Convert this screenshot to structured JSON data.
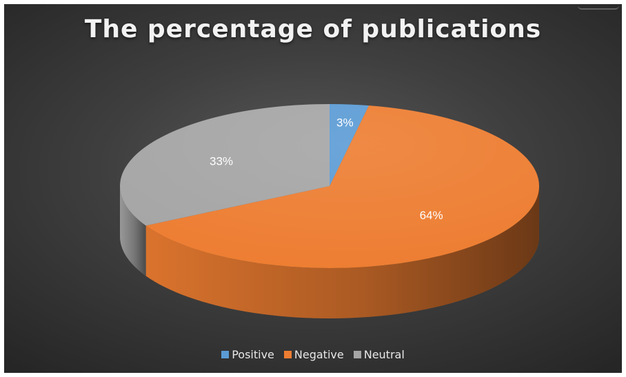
{
  "chart_data": {
    "type": "pie",
    "title": "The percentage of publications",
    "categories": [
      "Positive",
      "Negative",
      "Neutral"
    ],
    "values": [
      3,
      64,
      33
    ],
    "labels": [
      "3%",
      "64%",
      "33%"
    ],
    "colors": [
      "#5B9BD5",
      "#ED7D31",
      "#A5A5A5"
    ],
    "style": "3d-pie",
    "legend_position": "bottom"
  }
}
